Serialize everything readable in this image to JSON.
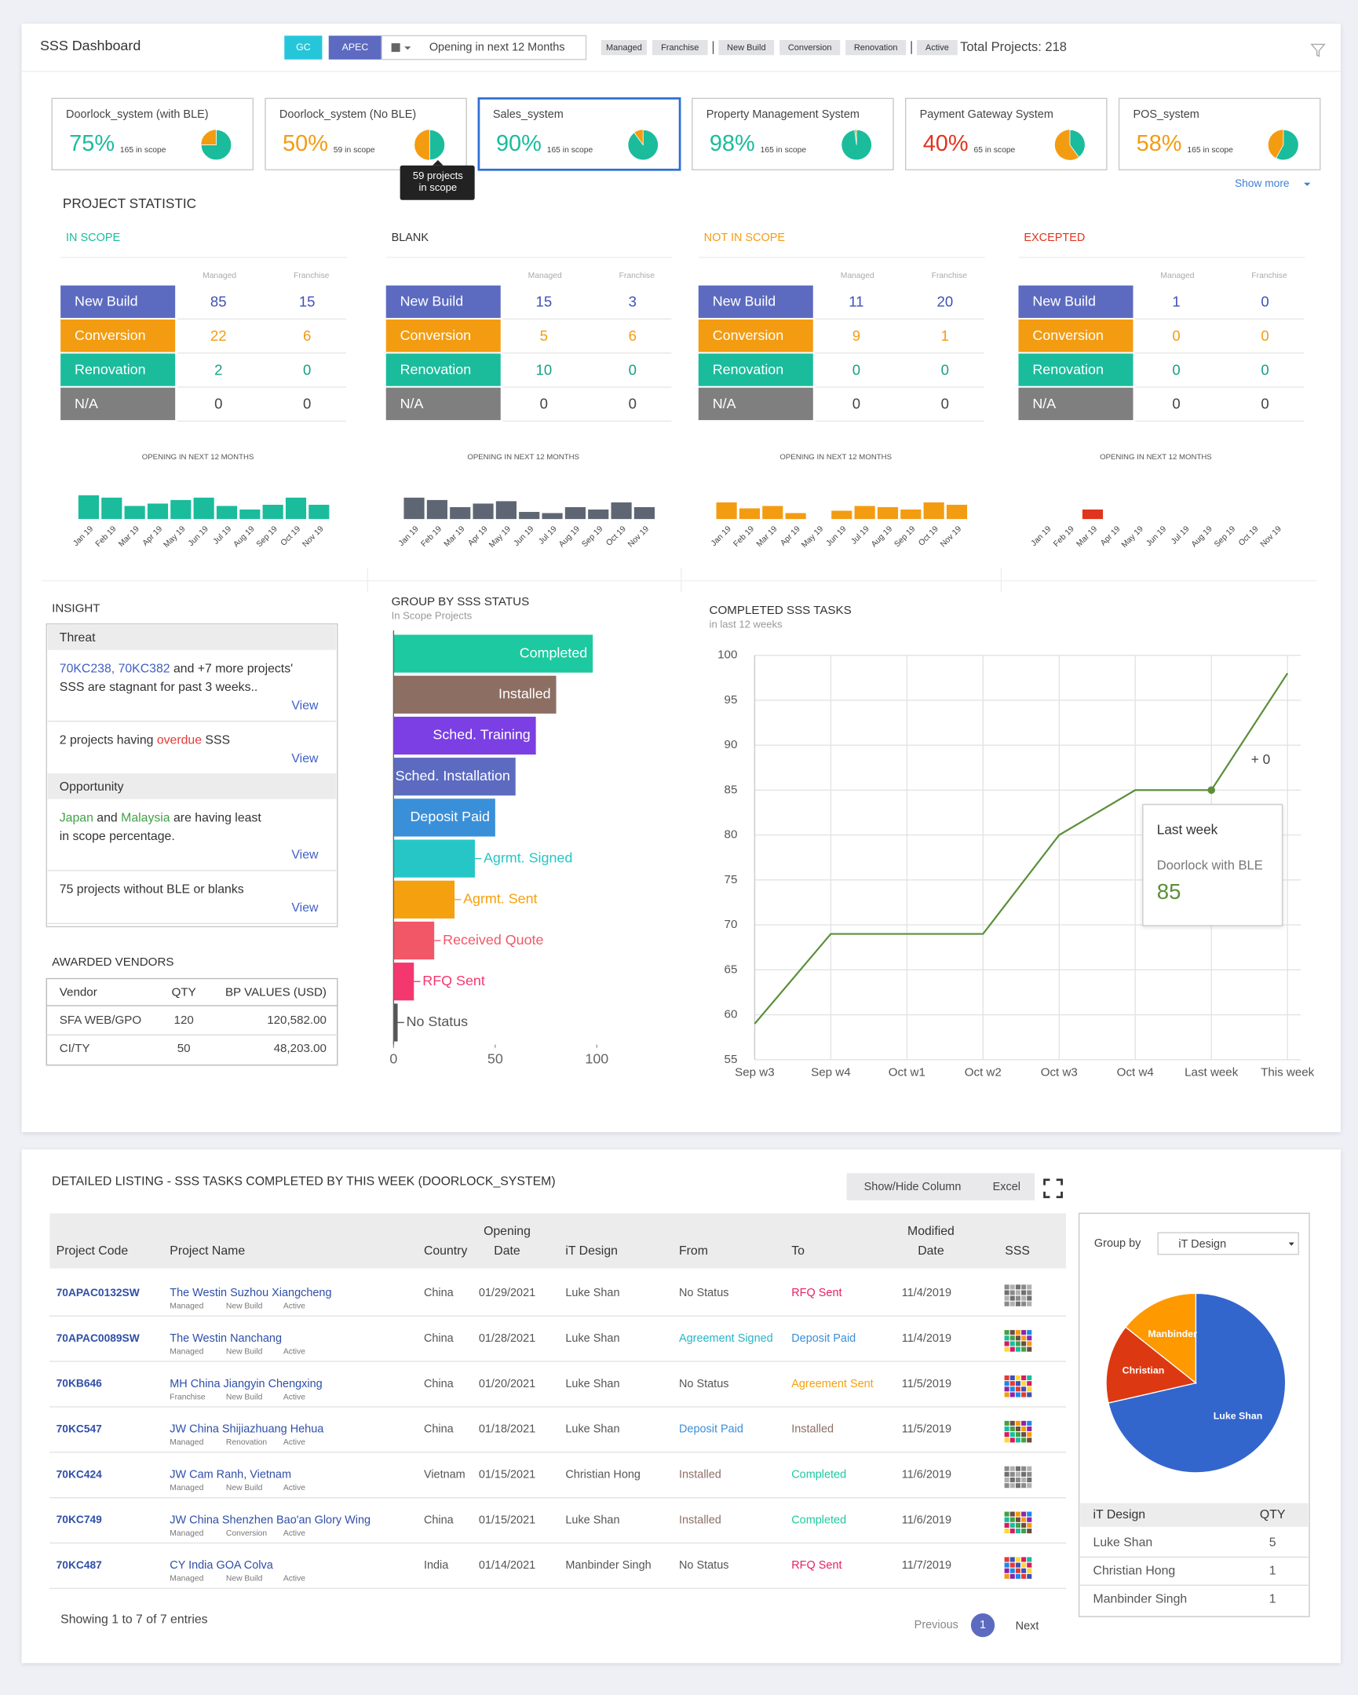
{
  "header": {
    "title": "SSS Dashboard",
    "region_filters": [
      {
        "label": "GC",
        "color": "#26c6da"
      },
      {
        "label": "APEC",
        "color": "#5c6bc0"
      }
    ],
    "date_filter": "Opening in next 12 Months",
    "tags": [
      "Managed",
      "Franchise",
      "New Build",
      "Conversion",
      "Renovation",
      "Active"
    ],
    "total_projects": "Total Projects: 218"
  },
  "systems": {
    "selected": 2,
    "cards": [
      {
        "name": "Doorlock_system (with BLE)",
        "value": 75,
        "value_label": "75%",
        "scope": "165 in scope",
        "color": "#1abc9c"
      },
      {
        "name": "Doorlock_system (No BLE)",
        "value": 50,
        "value_label": "50%",
        "scope": "59 in scope",
        "color": "#f39c12"
      },
      {
        "name": "Sales_system",
        "value": 90,
        "value_label": "90%",
        "scope": "165 in scope",
        "color": "#1abc9c"
      },
      {
        "name": "Property Management System",
        "value": 98,
        "value_label": "98%",
        "scope": "165 in scope",
        "color": "#1abc9c"
      },
      {
        "name": "Payment Gateway System",
        "value": 40,
        "value_label": "40%",
        "scope": "65 in scope",
        "color": "#e0341e"
      },
      {
        "name": "POS_system",
        "value": 58,
        "value_label": "58%",
        "scope": "165 in scope",
        "color": "#f39c12"
      }
    ],
    "tooltip": [
      "59 projects",
      "in scope"
    ],
    "show_more": "Show more"
  },
  "project_statistic": {
    "title": "PROJECT STATISTIC",
    "columns": [
      "Managed",
      "Franchise"
    ],
    "rows": [
      {
        "name": "New Build",
        "color": "#5c6bc0",
        "value_color": "#3f51b5"
      },
      {
        "name": "Conversion",
        "color": "#f39c12",
        "value_color": "#f39c12"
      },
      {
        "name": "Renovation",
        "color": "#1abc9c",
        "value_color": "#16a085"
      },
      {
        "name": "N/A",
        "color": "#7f7f7f",
        "value_color": "#444444"
      }
    ],
    "chart_title": "OPENING IN NEXT 12 MONTHS",
    "months": [
      "Jan 19",
      "Feb 19",
      "Mar 19",
      "Apr 19",
      "May 19",
      "Jun 19",
      "Jul 19",
      "Aug 19",
      "Sep 19",
      "Oct 19",
      "Nov 19"
    ],
    "groups": [
      {
        "name": "IN SCOPE",
        "title_color": "#1abc9c",
        "bar_color": "#1abc9c",
        "values": [
          [
            85,
            15
          ],
          [
            22,
            6
          ],
          [
            2,
            0
          ],
          [
            0,
            0
          ]
        ],
        "openings": [
          20,
          18,
          11,
          13,
          16,
          18,
          11,
          8,
          12,
          18,
          12
        ]
      },
      {
        "name": "BLANK",
        "title_color": "#333333",
        "bar_color": "#5f6673",
        "values": [
          [
            15,
            3
          ],
          [
            5,
            6
          ],
          [
            10,
            0
          ],
          [
            0,
            0
          ]
        ],
        "openings": [
          18,
          16,
          10,
          13,
          15,
          6,
          5,
          10,
          8,
          14,
          10
        ]
      },
      {
        "name": "NOT IN SCOPE",
        "title_color": "#f39c12",
        "bar_color": "#f39c12",
        "values": [
          [
            11,
            20
          ],
          [
            9,
            1
          ],
          [
            0,
            0
          ],
          [
            0,
            0
          ]
        ],
        "openings": [
          14,
          9,
          11,
          5,
          0,
          7,
          11,
          10,
          8,
          14,
          12
        ]
      },
      {
        "name": "EXCEPTED",
        "title_color": "#e0341e",
        "bar_color": "#e0341e",
        "values": [
          [
            1,
            0
          ],
          [
            0,
            0
          ],
          [
            0,
            0
          ],
          [
            0,
            0
          ]
        ],
        "openings": [
          0,
          0,
          8,
          0,
          0,
          0,
          0,
          0,
          0,
          0,
          0
        ]
      }
    ]
  },
  "insight": {
    "title": "INSIGHT",
    "sections": [
      {
        "heading": "Threat",
        "items": [
          {
            "lines": [
              [
                {
                  "text": "70KC238, 70KC382",
                  "color": "#3f5fc4"
                },
                {
                  "text": " and +7 more projects'"
                }
              ],
              [
                {
                  "text": "SSS are stagnant for past 3 weeks.."
                }
              ]
            ],
            "action": "View"
          },
          {
            "lines": [
              [
                {
                  "text": "2 projects having "
                },
                {
                  "text": "overdue",
                  "color": "#e53935"
                },
                {
                  "text": " SSS"
                }
              ]
            ],
            "action": "View"
          }
        ]
      },
      {
        "heading": "Opportunity",
        "items": [
          {
            "lines": [
              [
                {
                  "text": "Japan",
                  "color": "#43a047"
                },
                {
                  "text": " and "
                },
                {
                  "text": "Malaysia",
                  "color": "#43a047"
                },
                {
                  "text": " are having least"
                }
              ],
              [
                {
                  "text": "in scope percentage."
                }
              ]
            ],
            "action": "View"
          },
          {
            "lines": [
              [
                {
                  "text": "75 projects without BLE or blanks"
                }
              ]
            ],
            "action": "View"
          }
        ]
      }
    ]
  },
  "awarded_vendors": {
    "title": "AWARDED VENDORS",
    "columns": [
      "Vendor",
      "QTY",
      "BP VALUES (USD)"
    ],
    "rows": [
      [
        "SFA WEB/GPO",
        "120",
        "120,582.00"
      ],
      [
        "CI/TY",
        "50",
        "48,203.00"
      ]
    ]
  },
  "status_chart": {
    "type": "bar",
    "orientation": "horizontal",
    "title": "GROUP BY SSS STATUS",
    "subtitle": "In Scope Projects",
    "categories": [
      "Completed",
      "Installed",
      "Sched. Training",
      "Sched. Installation",
      "Deposit Paid",
      "Agrmt. Signed",
      "Agrmt. Sent",
      "Received Quote",
      "RFQ Sent",
      "No Status"
    ],
    "values": [
      98,
      80,
      70,
      60,
      50,
      40,
      30,
      20,
      10,
      2
    ],
    "colors": [
      "#1dc9a0",
      "#8d6e63",
      "#7b3fe4",
      "#5c6bc0",
      "#3a8fd9",
      "#26c6c6",
      "#f5a00f",
      "#f25767",
      "#f5376f",
      "#555555"
    ],
    "xlim": [
      0,
      100
    ],
    "xticks": [
      0,
      50,
      100
    ]
  },
  "tasks_chart": {
    "type": "line",
    "title": "COMPLETED SSS TASKS",
    "subtitle": "in last 12 weeks",
    "categories": [
      "Sep w3",
      "Sep w4",
      "Oct w1",
      "Oct w2",
      "Oct w3",
      "Oct w4",
      "Last week",
      "This week"
    ],
    "series": [
      {
        "name": "Doorlock with BLE",
        "color": "#5b8f3a",
        "values": [
          59,
          69,
          69,
          69,
          80,
          85,
          85,
          98
        ]
      }
    ],
    "ylim": [
      55,
      100
    ],
    "yticks": [
      55,
      60,
      65,
      70,
      75,
      80,
      85,
      90,
      95,
      100
    ],
    "grid": true,
    "annotation": "+ 0",
    "tooltip_index": 6
  },
  "listing": {
    "title": "DETAILED LISTING - SSS TASKS COMPLETED BY THIS WEEK (DOORLOCK_SYSTEM)",
    "buttons": [
      "Show/Hide Column",
      "Excel"
    ],
    "columns": [
      [
        "Project Code"
      ],
      [
        "Project Name"
      ],
      [
        "Country"
      ],
      [
        "Opening",
        "Date"
      ],
      [
        "iT Design"
      ],
      [
        "From"
      ],
      [
        "To"
      ],
      [
        "Modified",
        "Date"
      ],
      [
        "SSS"
      ]
    ],
    "rows": [
      {
        "code": "70APAC0132SW",
        "name": "The Westin Suzhou Xiangcheng",
        "tags": [
          "Managed",
          "New Build",
          "Active"
        ],
        "country": "China",
        "opening": "01/29/2021",
        "design": "Luke Shan",
        "from": {
          "text": "No Status",
          "color": "#555555"
        },
        "to": {
          "text": "RFQ Sent",
          "color": "#e91e63"
        },
        "modified": "11/4/2019"
      },
      {
        "code": "70APAC0089SW",
        "name": "The Westin Nanchang",
        "tags": [
          "Managed",
          "New Build",
          "Active"
        ],
        "country": "China",
        "opening": "01/28/2021",
        "design": "Luke Shan",
        "from": {
          "text": "Agreement Signed",
          "color": "#26b5c6"
        },
        "to": {
          "text": "Deposit Paid",
          "color": "#3a8fd9"
        },
        "modified": "11/4/2019"
      },
      {
        "code": "70KB646",
        "name": "MH China Jiangyin Chengxing",
        "tags": [
          "Franchise",
          "New Build",
          "Active"
        ],
        "country": "China",
        "opening": "01/20/2021",
        "design": "Luke Shan",
        "from": {
          "text": "No Status",
          "color": "#555555"
        },
        "to": {
          "text": "Agreement Sent",
          "color": "#f5a00f"
        },
        "modified": "11/5/2019"
      },
      {
        "code": "70KC547",
        "name": "JW China Shijiazhuang Hehua",
        "tags": [
          "Managed",
          "Renovation",
          "Active"
        ],
        "country": "China",
        "opening": "01/18/2021",
        "design": "Luke Shan",
        "from": {
          "text": "Deposit Paid",
          "color": "#3a8fd9"
        },
        "to": {
          "text": "Installed",
          "color": "#8d6e63"
        },
        "modified": "11/5/2019"
      },
      {
        "code": "70KC424",
        "name": "JW Cam Ranh, Vietnam",
        "tags": [
          "Managed",
          "New Build",
          "Active"
        ],
        "country": "Vietnam",
        "opening": "01/15/2021",
        "design": "Christian Hong",
        "from": {
          "text": "Installed",
          "color": "#8d6e63"
        },
        "to": {
          "text": "Completed",
          "color": "#1dc9a0"
        },
        "modified": "11/6/2019"
      },
      {
        "code": "70KC749",
        "name": "JW China Shenzhen Bao'an Glory Wing",
        "tags": [
          "Managed",
          "Conversion",
          "Active"
        ],
        "country": "China",
        "opening": "01/15/2021",
        "design": "Luke Shan",
        "from": {
          "text": "Installed",
          "color": "#8d6e63"
        },
        "to": {
          "text": "Completed",
          "color": "#1dc9a0"
        },
        "modified": "11/6/2019"
      },
      {
        "code": "70KC487",
        "name": "CY India GOA Colva",
        "tags": [
          "Managed",
          "New Build",
          "Active"
        ],
        "country": "India",
        "opening": "01/14/2021",
        "design": "Manbinder Singh",
        "from": {
          "text": "No Status",
          "color": "#555555"
        },
        "to": {
          "text": "RFQ Sent",
          "color": "#e91e63"
        },
        "modified": "11/7/2019"
      }
    ],
    "footer": "Showing 1 to 7 of 7 entries",
    "pagination": [
      "Previous",
      "1",
      "Next"
    ]
  },
  "group_chart": {
    "type": "pie",
    "group_by_label": "Group by",
    "group_by": "iT Design",
    "categories": [
      "Luke Shan",
      "Christian Hong",
      "Manbinder Singh"
    ],
    "slice_labels": [
      "Luke Shan",
      "Christian",
      "Manbinder"
    ],
    "values": [
      5,
      1,
      1
    ],
    "colors": [
      "#3366cc",
      "#dc3912",
      "#ff9900"
    ],
    "table_columns": [
      "iT Design",
      "QTY"
    ]
  }
}
